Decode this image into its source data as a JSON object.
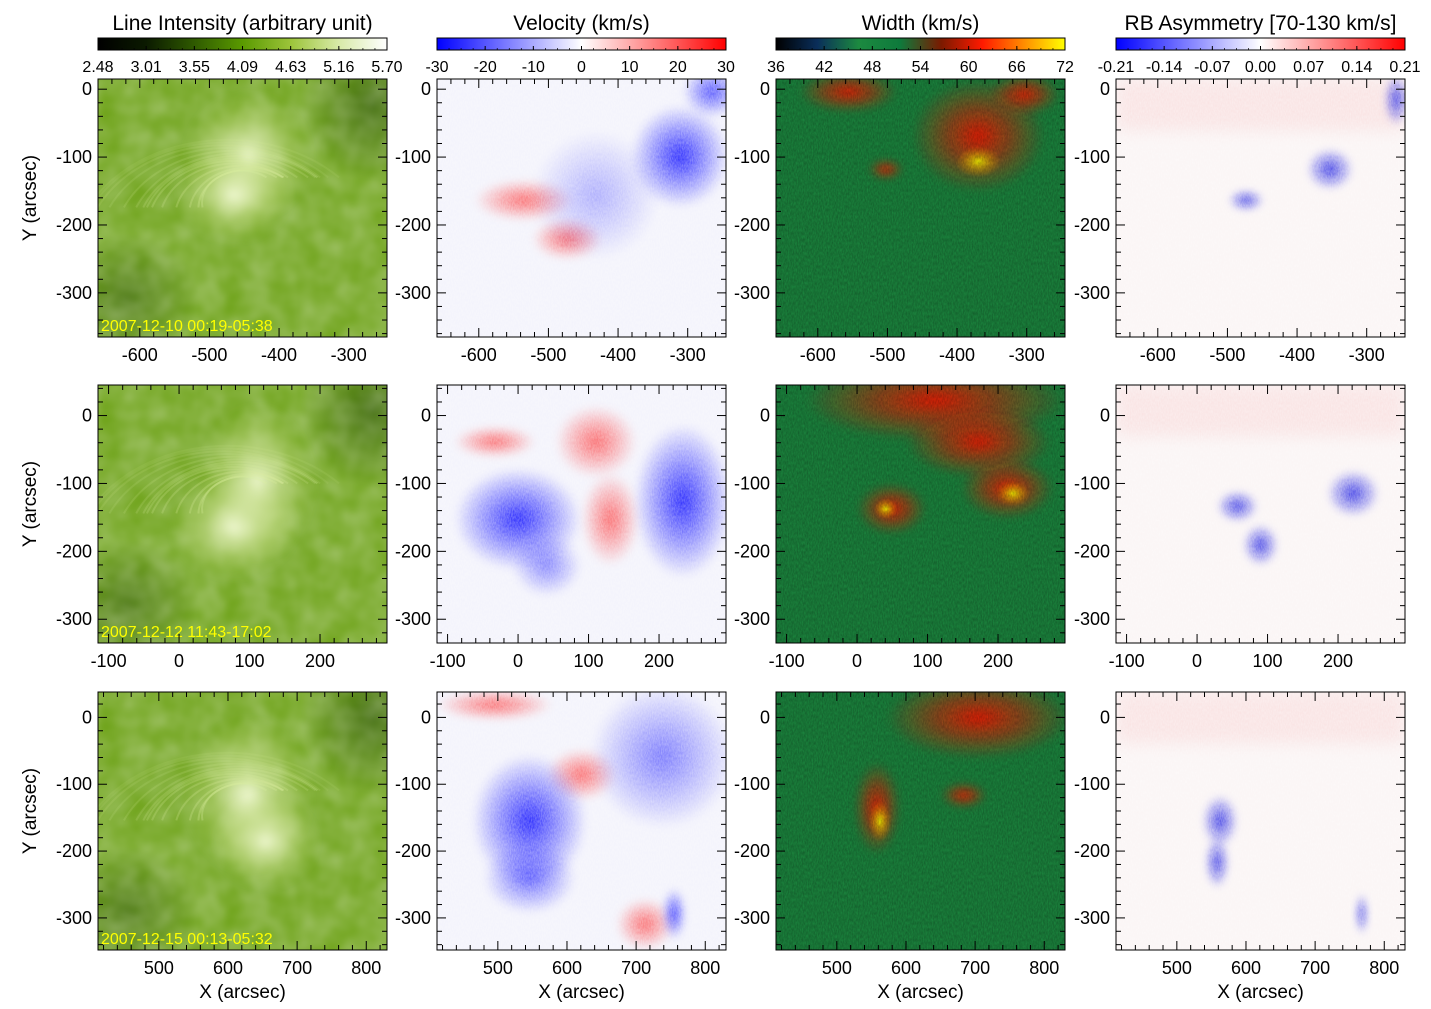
{
  "figure": {
    "columns": [
      {
        "id": "intensity",
        "title": "Line Intensity (arbitrary unit)",
        "colormap": "intensity",
        "colorbar_ticks": [
          "2.48",
          "3.01",
          "3.55",
          "4.09",
          "4.63",
          "5.16",
          "5.70"
        ]
      },
      {
        "id": "velocity",
        "title": "Velocity (km/s)",
        "colormap": "diverging",
        "colorbar_ticks": [
          "-30",
          "-20",
          "-10",
          "0",
          "10",
          "20",
          "30"
        ]
      },
      {
        "id": "width",
        "title": "Width (km/s)",
        "colormap": "width",
        "colorbar_ticks": [
          "36",
          "42",
          "48",
          "54",
          "60",
          "66",
          "72"
        ]
      },
      {
        "id": "rb-asymmetry",
        "title": "RB Asymmetry [70-130 km/s]",
        "colormap": "diverging",
        "colorbar_ticks": [
          "-0.21",
          "-0.14",
          "-0.07",
          "0.00",
          "0.07",
          "0.14",
          "0.21"
        ]
      }
    ],
    "rows": [
      {
        "date_label": "2007-12-10  00:19-05:38",
        "x_range": [
          -660,
          -245
        ],
        "x_ticks": [
          "-600",
          "-500",
          "-400",
          "-300"
        ],
        "y_range": [
          -365,
          15
        ],
        "y_ticks": [
          "0",
          "-100",
          "-200",
          "-300"
        ]
      },
      {
        "date_label": "2007-12-12  11:43-17:02",
        "x_range": [
          -115,
          295
        ],
        "x_ticks": [
          "-100",
          "0",
          "100",
          "200"
        ],
        "y_range": [
          -335,
          45
        ],
        "y_ticks": [
          "0",
          "-100",
          "-200",
          "-300"
        ]
      },
      {
        "date_label": "2007-12-15  00:13-05:32",
        "x_range": [
          412,
          830
        ],
        "x_ticks": [
          "500",
          "600",
          "700",
          "800"
        ],
        "y_range": [
          -348,
          38
        ],
        "y_ticks": [
          "0",
          "-100",
          "-200",
          "-300"
        ]
      }
    ],
    "y_axis_label": "Y (arcsec)",
    "x_axis_label": "X (arcsec)",
    "colors": {
      "stamp_text": "#ffff00",
      "velocity_blue": "#0000ff",
      "velocity_red": "#ff0000",
      "intensity_dark": "#0b1a00",
      "intensity_mid": "#5a9a00",
      "intensity_bright": "#ffffff",
      "width_green": "#1c8a40",
      "width_red": "#ff1a00",
      "width_yellow": "#ffff00"
    }
  }
}
